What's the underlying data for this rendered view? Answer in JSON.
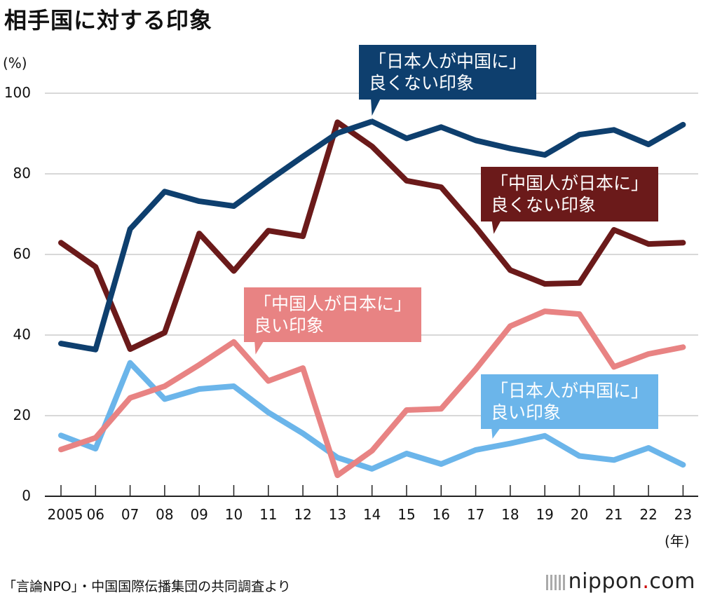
{
  "title": "相手国に対する印象",
  "source": "「言論NPO」・中国国際伝播集団の共同調査より",
  "brand": {
    "name": "nippon",
    "dot": ".",
    "suffix": "com"
  },
  "chart_data": {
    "type": "line",
    "ylabel": "(%)",
    "xunit": "(年)",
    "ylim": [
      0,
      100
    ],
    "yticks": [
      "0",
      "20",
      "40",
      "60",
      "80",
      "100"
    ],
    "categories": [
      "2005",
      "06",
      "07",
      "08",
      "09",
      "10",
      "11",
      "12",
      "13",
      "14",
      "15",
      "16",
      "17",
      "18",
      "19",
      "20",
      "21",
      "22",
      "23"
    ],
    "series": [
      {
        "name": "「日本人が中国に」良くない印象",
        "label_lines": [
          "「日本人が中国に」",
          "良くない印象"
        ],
        "color": "#0e3f6e",
        "values": [
          37.9,
          36.4,
          66.3,
          75.6,
          73.2,
          72.0,
          78.3,
          84.3,
          90.1,
          93.0,
          88.8,
          91.6,
          88.3,
          86.3,
          84.7,
          89.7,
          90.9,
          87.3,
          92.2
        ]
      },
      {
        "name": "「中国人が日本に」良くない印象",
        "label_lines": [
          "「中国人が日本に」",
          "良くない印象"
        ],
        "color": "#6b1a1a",
        "values": [
          62.9,
          56.9,
          36.5,
          40.6,
          65.2,
          55.9,
          65.9,
          64.5,
          92.8,
          86.8,
          78.3,
          76.7,
          66.8,
          56.1,
          52.7,
          52.9,
          66.1,
          62.6,
          62.9
        ]
      },
      {
        "name": "「中国人が日本に」良い印象",
        "label_lines": [
          "「中国人が日本に」",
          "良い印象"
        ],
        "color": "#e88383",
        "values": [
          11.6,
          14.5,
          24.4,
          27.3,
          32.6,
          38.3,
          28.6,
          31.8,
          5.2,
          11.3,
          21.4,
          21.7,
          31.5,
          42.2,
          45.9,
          45.2,
          32.1,
          35.3,
          37.0
        ]
      },
      {
        "name": "「日本人が中国に」良い印象",
        "label_lines": [
          "「日本人が中国に」",
          "良い印象"
        ],
        "color": "#6bb5ea",
        "values": [
          15.1,
          11.8,
          33.1,
          24.1,
          26.6,
          27.3,
          20.8,
          15.6,
          9.6,
          6.8,
          10.6,
          8.0,
          11.5,
          13.1,
          15.0,
          10.0,
          9.0,
          12.0,
          7.8
        ]
      }
    ]
  }
}
